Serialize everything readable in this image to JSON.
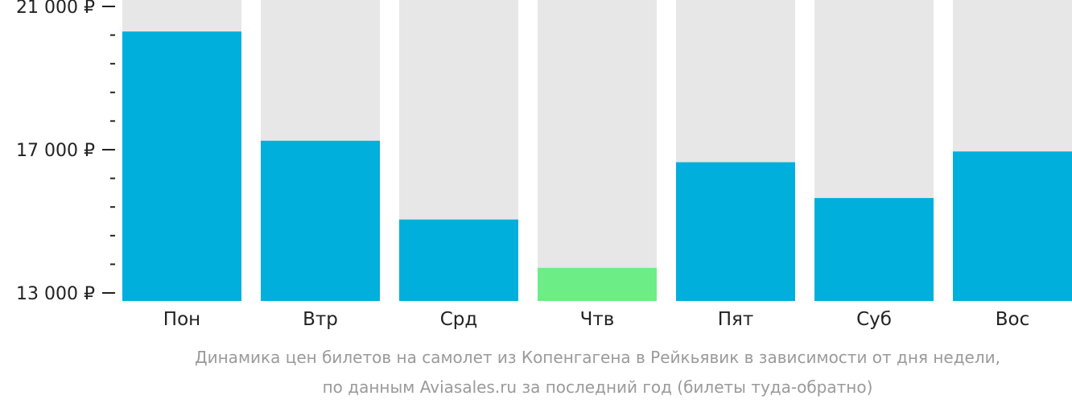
{
  "chart_data": {
    "type": "bar",
    "categories": [
      "Пон",
      "Втр",
      "Срд",
      "Чтв",
      "Пят",
      "Суб",
      "Вос"
    ],
    "values": [
      20300,
      17250,
      15050,
      13700,
      16650,
      15650,
      16950
    ],
    "highlight_index": 3,
    "ylim": [
      13000,
      21000
    ],
    "y_ticks": [
      {
        "value": 21000,
        "label": "21 000 ₽"
      },
      {
        "value": 17000,
        "label": "17 000 ₽"
      },
      {
        "value": 13000,
        "label": "13 000 ₽"
      }
    ],
    "minor_tick_step": 800,
    "colors": {
      "bar": "#00afdc",
      "highlight": "#6ced86",
      "track": "#e7e7e7",
      "axis": "#222222"
    }
  },
  "caption": {
    "line1": "Динамика цен билетов на самолет из Копенгагена в Рейкьявик в зависимости от дня недели,",
    "line2": "по данным Aviasales.ru за последний год (билеты туда-обратно)"
  }
}
